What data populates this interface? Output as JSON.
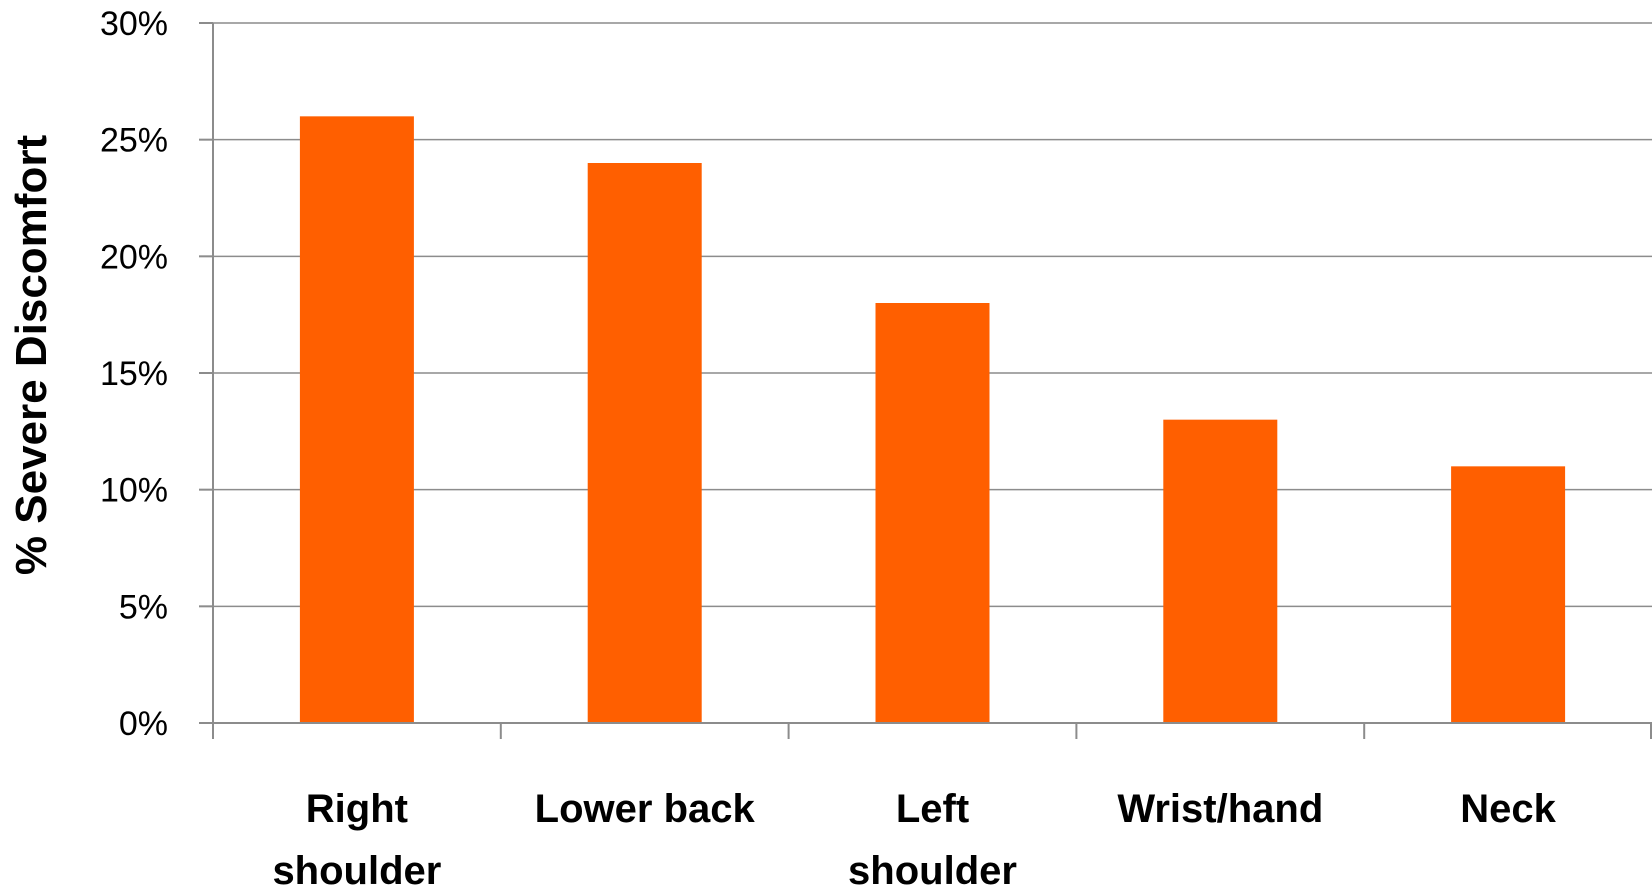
{
  "chart_data": {
    "type": "bar",
    "categories": [
      [
        "Right",
        "shoulder"
      ],
      [
        "Lower back"
      ],
      [
        "Left",
        "shoulder"
      ],
      [
        "Wrist/hand"
      ],
      [
        "Neck"
      ]
    ],
    "values": [
      26,
      24,
      18,
      13,
      11
    ],
    "ylabel": "%  Severe Discomfort",
    "xlabel": "",
    "ylim": [
      0,
      30
    ],
    "yticks": [
      0,
      5,
      10,
      15,
      20,
      25,
      30
    ],
    "ytick_labels": [
      "0%",
      "5%",
      "10%",
      "15%",
      "20%",
      "25%",
      "30%"
    ],
    "grid": true,
    "legend": "none",
    "bar_color": "#ff5f00"
  }
}
